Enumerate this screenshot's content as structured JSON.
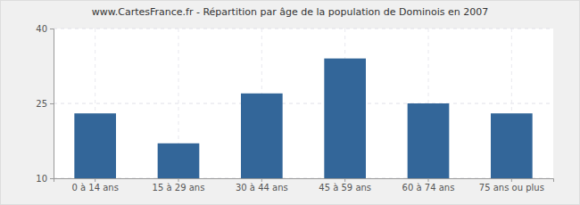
{
  "chart_data": {
    "type": "bar",
    "title": "www.CartesFrance.fr - Répartition par âge de la population de Dominois en 2007",
    "categories": [
      "0 à 14 ans",
      "15 à 29 ans",
      "30 à 44 ans",
      "45 à 59 ans",
      "60 à 74 ans",
      "75 ans ou plus"
    ],
    "values": [
      23,
      17,
      27,
      34,
      25,
      23
    ],
    "color": "#336699",
    "ylim": [
      10,
      40
    ],
    "yticks": [
      10,
      25,
      40
    ],
    "grid": true
  }
}
